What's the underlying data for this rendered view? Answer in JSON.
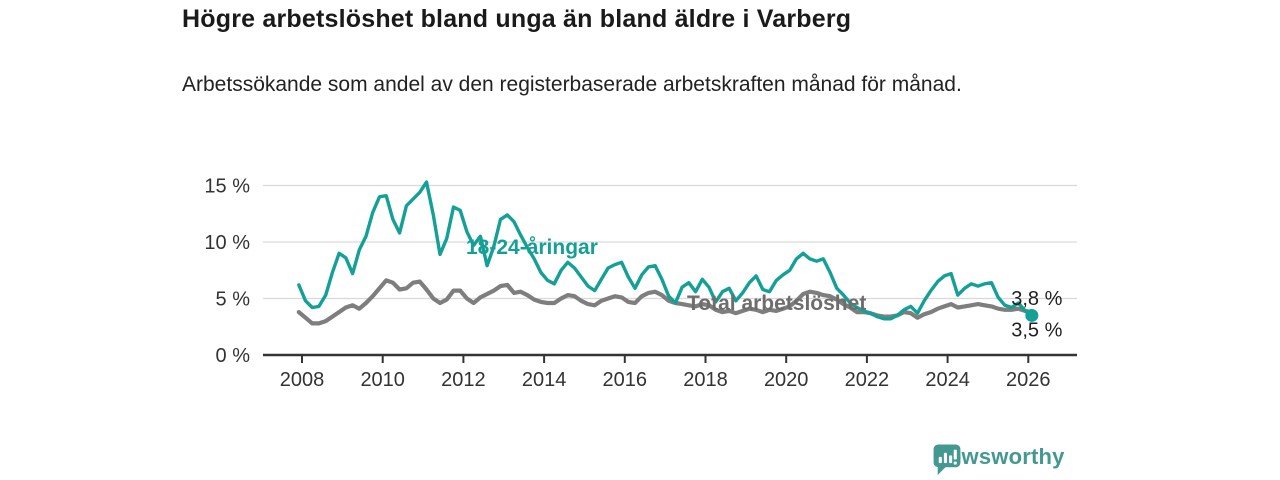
{
  "header": {
    "title": "Högre arbetslöshet bland unga än bland äldre i Varberg",
    "subtitle": "Arbetssökande som andel av den registerbaserade arbetskraften månad för månad."
  },
  "chart_data": {
    "type": "line",
    "title": "Högre arbetslöshet bland unga än bland äldre i Varberg",
    "subtitle": "Arbetssökande som andel av den registerbaserade arbetskraften månad för månad.",
    "x_start": 2007.92,
    "x_step": 0.16667,
    "xlim": [
      2007.1,
      2027.2
    ],
    "ylim": [
      0,
      16
    ],
    "grid": "horizontal",
    "x_ticks": [
      2008,
      2010,
      2012,
      2014,
      2016,
      2018,
      2020,
      2022,
      2024,
      2026
    ],
    "y_ticks": [
      {
        "value": 0,
        "label": "0 %"
      },
      {
        "value": 5,
        "label": "5 %"
      },
      {
        "value": 10,
        "label": "10 %"
      },
      {
        "value": 15,
        "label": "15 %"
      }
    ],
    "series": [
      {
        "name": "18-24-åringar",
        "color": "#14a096",
        "end_label": "3,5 %",
        "end_marker": true,
        "values": [
          6.2,
          4.8,
          4.2,
          4.3,
          5.3,
          7.3,
          9.0,
          8.6,
          7.2,
          9.3,
          10.5,
          12.6,
          14.0,
          14.1,
          12.0,
          10.8,
          13.2,
          13.8,
          14.4,
          15.3,
          12.4,
          8.9,
          10.3,
          13.1,
          12.8,
          10.9,
          9.7,
          10.5,
          7.9,
          9.6,
          12.0,
          12.4,
          11.8,
          10.6,
          9.5,
          8.5,
          7.3,
          6.6,
          6.3,
          7.5,
          8.2,
          7.7,
          6.9,
          6.1,
          5.7,
          6.7,
          7.7,
          8.0,
          8.2,
          6.9,
          5.9,
          7.1,
          7.8,
          7.9,
          6.7,
          5.2,
          4.6,
          6.0,
          6.4,
          5.6,
          6.7,
          6.0,
          4.7,
          5.6,
          5.9,
          4.8,
          5.5,
          6.4,
          7.0,
          5.8,
          5.6,
          6.6,
          7.1,
          7.5,
          8.5,
          9.0,
          8.5,
          8.3,
          8.5,
          7.3,
          5.9,
          5.3,
          4.6,
          4.2,
          3.9,
          3.7,
          3.4,
          3.2,
          3.2,
          3.5,
          4.0,
          4.3,
          3.7,
          4.8,
          5.7,
          6.5,
          7.0,
          7.2,
          5.3,
          5.9,
          6.3,
          6.1,
          6.3,
          6.4,
          5.1,
          4.4,
          4.2,
          4.6,
          3.9,
          3.5
        ]
      },
      {
        "name": "Total arbetslöshet",
        "color": "#7e7e7e",
        "label_color": "#6d6d6d",
        "end_label": "3,8 %",
        "end_marker": false,
        "values": [
          3.8,
          3.3,
          2.8,
          2.8,
          3.0,
          3.4,
          3.8,
          4.2,
          4.4,
          4.1,
          4.6,
          5.2,
          5.9,
          6.6,
          6.4,
          5.8,
          5.9,
          6.4,
          6.5,
          5.8,
          5.0,
          4.6,
          4.9,
          5.7,
          5.7,
          5.0,
          4.6,
          5.1,
          5.4,
          5.7,
          6.1,
          6.2,
          5.5,
          5.6,
          5.3,
          4.9,
          4.7,
          4.6,
          4.6,
          5.0,
          5.3,
          5.2,
          4.8,
          4.5,
          4.4,
          4.8,
          5.0,
          5.2,
          5.1,
          4.7,
          4.6,
          5.2,
          5.5,
          5.6,
          5.3,
          4.8,
          4.6,
          4.5,
          4.4,
          4.3,
          4.5,
          4.4,
          4.0,
          3.8,
          3.9,
          3.7,
          3.9,
          4.1,
          4.0,
          3.8,
          4.0,
          3.9,
          4.1,
          4.3,
          4.8,
          5.4,
          5.6,
          5.5,
          5.3,
          5.2,
          4.9,
          4.5,
          4.2,
          3.8,
          3.8,
          3.7,
          3.5,
          3.4,
          3.4,
          3.5,
          3.8,
          3.7,
          3.3,
          3.6,
          3.8,
          4.1,
          4.3,
          4.5,
          4.2,
          4.3,
          4.4,
          4.5,
          4.4,
          4.3,
          4.1,
          4.0,
          4.0,
          4.1,
          3.9,
          3.8
        ]
      }
    ]
  },
  "footer": {
    "brand": "Newsworthy",
    "brand_color": "#439992"
  }
}
